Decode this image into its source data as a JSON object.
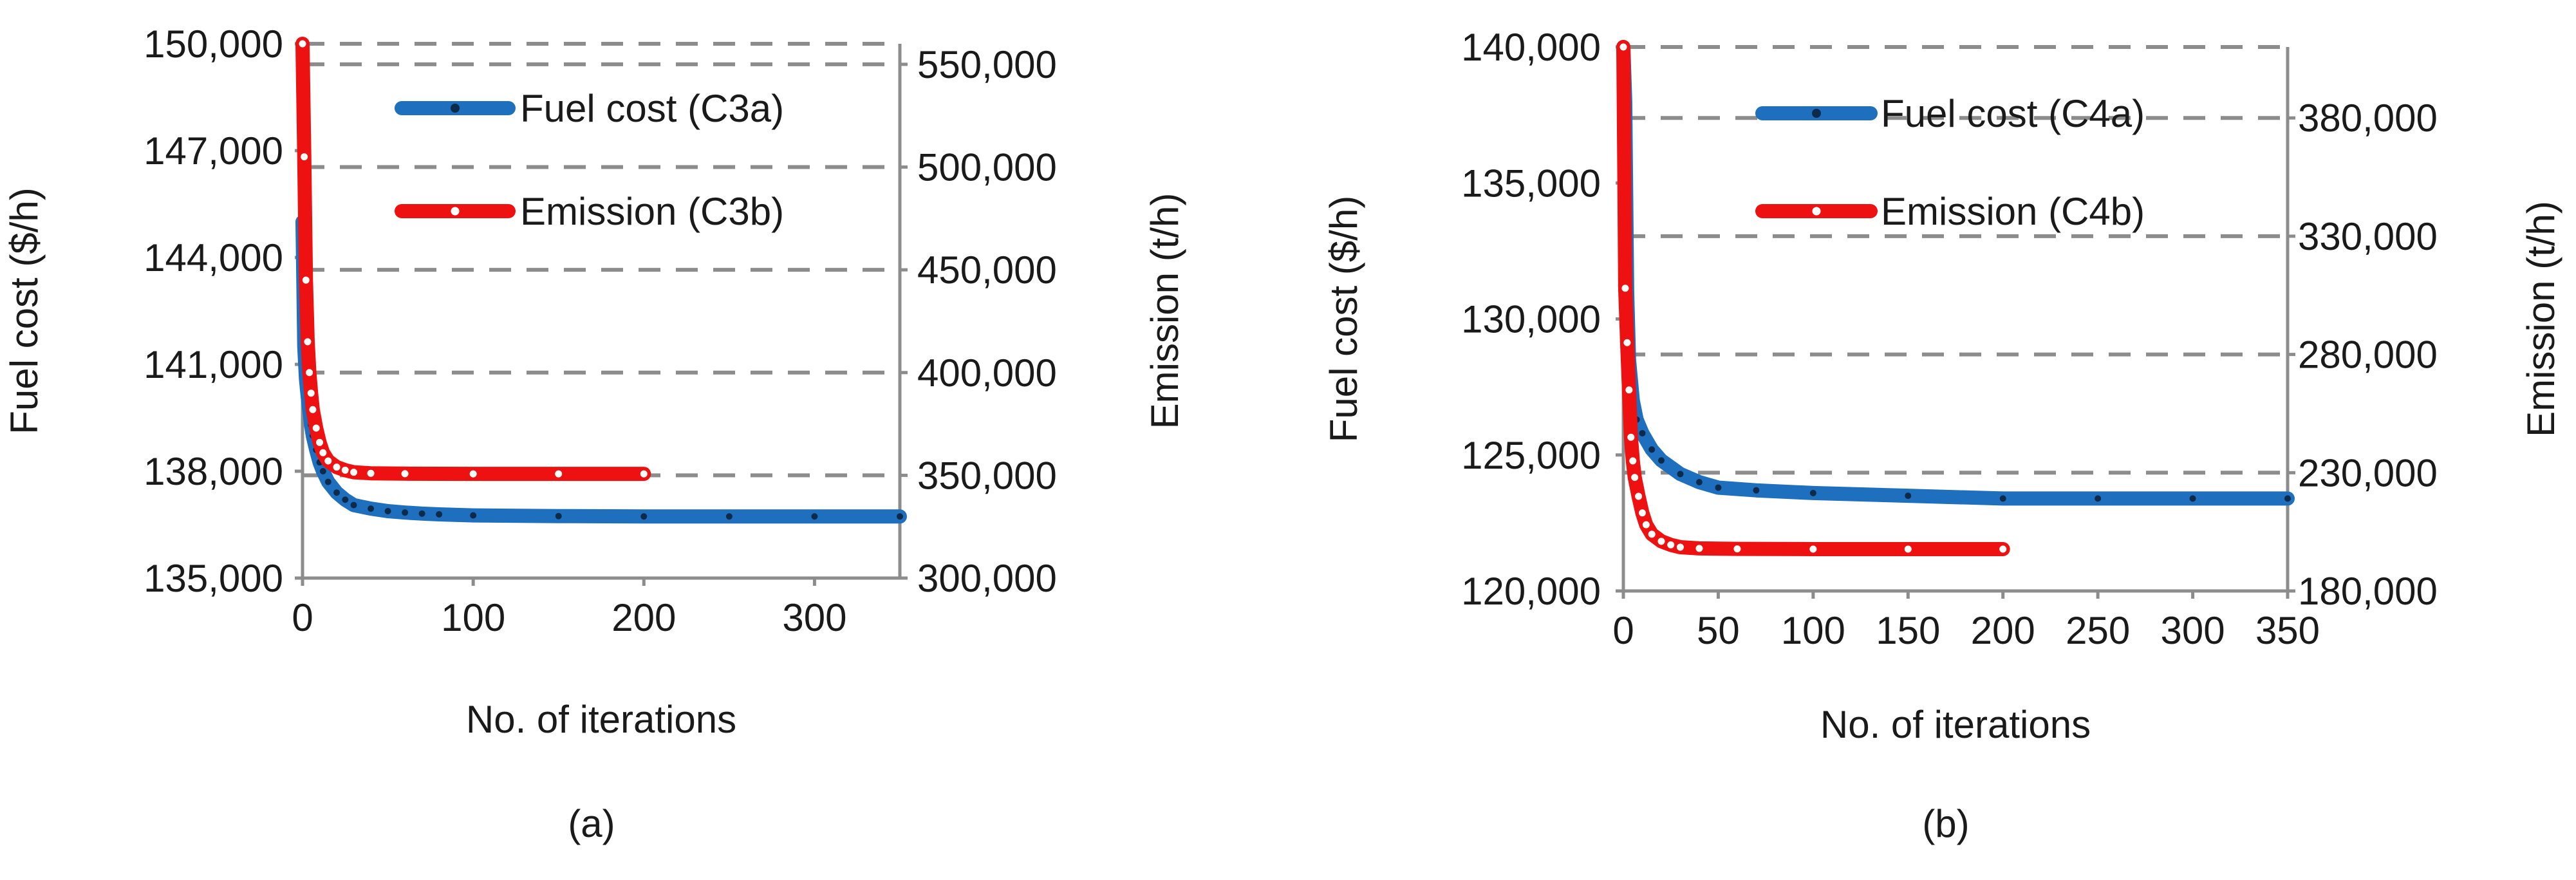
{
  "colors": {
    "fuel": "#1f6fbf",
    "emission": "#ee1111",
    "grid": "#8c8c8c"
  },
  "chart_data": [
    {
      "type": "line",
      "panel_label": "(a)",
      "xlabel": "No. of iterations",
      "ylabel_left": "Fuel cost ($/h)",
      "ylabel_right": "Emission (t/h)",
      "xlim": [
        0,
        350
      ],
      "ylim_left": [
        135000,
        150000
      ],
      "ylim_right": [
        300000,
        560000
      ],
      "x_ticks": [
        0,
        100,
        200,
        300
      ],
      "x_tick_labels": [
        "0",
        "100",
        "200",
        "300"
      ],
      "y_left_ticks": [
        135000,
        138000,
        141000,
        144000,
        147000,
        150000
      ],
      "y_left_tick_labels": [
        "135,000",
        "138,000",
        "141,000",
        "144,000",
        "147,000",
        "150,000"
      ],
      "y_right_ticks": [
        300000,
        350000,
        400000,
        450000,
        500000,
        550000
      ],
      "y_right_tick_labels": [
        "300,000",
        "350,000",
        "400,000",
        "450,000",
        "500,000",
        "550,000"
      ],
      "legend_position": "top-right",
      "series": [
        {
          "name": "Fuel cost (C3a)",
          "axis": "left",
          "color": "#1f6fbf",
          "marker": "dot",
          "points": [
            [
              0,
              145000
            ],
            [
              1,
              141500
            ],
            [
              2,
              140600
            ],
            [
              3,
              140100
            ],
            [
              4,
              139700
            ],
            [
              5,
              139300
            ],
            [
              6,
              139000
            ],
            [
              8,
              138600
            ],
            [
              10,
              138250
            ],
            [
              12,
              138000
            ],
            [
              15,
              137700
            ],
            [
              20,
              137400
            ],
            [
              25,
              137200
            ],
            [
              30,
              137050
            ],
            [
              40,
              136950
            ],
            [
              50,
              136880
            ],
            [
              60,
              136840
            ],
            [
              70,
              136810
            ],
            [
              80,
              136790
            ],
            [
              100,
              136760
            ],
            [
              150,
              136740
            ],
            [
              200,
              136730
            ],
            [
              250,
              136730
            ],
            [
              300,
              136730
            ],
            [
              350,
              136730
            ]
          ]
        },
        {
          "name": "Emission (C3b)",
          "axis": "right",
          "color": "#ee1111",
          "marker": "ring",
          "points": [
            [
              0,
              560000
            ],
            [
              1,
              505000
            ],
            [
              2,
              445000
            ],
            [
              3,
              415000
            ],
            [
              4,
              400000
            ],
            [
              5,
              390000
            ],
            [
              6,
              382000
            ],
            [
              8,
              373000
            ],
            [
              10,
              366000
            ],
            [
              12,
              361000
            ],
            [
              15,
              357000
            ],
            [
              20,
              354000
            ],
            [
              25,
              352500
            ],
            [
              30,
              351500
            ],
            [
              40,
              351000
            ],
            [
              60,
              350800
            ],
            [
              100,
              350700
            ],
            [
              150,
              350700
            ],
            [
              200,
              350700
            ]
          ]
        }
      ]
    },
    {
      "type": "line",
      "panel_label": "(b)",
      "xlabel": "No. of iterations",
      "ylabel_left": "Fuel cost ($/h)",
      "ylabel_right": "Emission (t/h)",
      "xlim": [
        0,
        350
      ],
      "ylim_left": [
        120000,
        140000
      ],
      "ylim_right": [
        180000,
        410000
      ],
      "x_ticks": [
        0,
        50,
        100,
        150,
        200,
        250,
        300,
        350
      ],
      "x_tick_labels": [
        "0",
        "50",
        "100",
        "150",
        "200",
        "250",
        "300",
        "350"
      ],
      "y_left_ticks": [
        120000,
        125000,
        130000,
        135000,
        140000
      ],
      "y_left_tick_labels": [
        "120,000",
        "125,000",
        "130,000",
        "135,000",
        "140,000"
      ],
      "y_right_ticks": [
        180000,
        230000,
        280000,
        330000,
        380000
      ],
      "y_right_tick_labels": [
        "180,000",
        "230,000",
        "280,000",
        "330,000",
        "380,000"
      ],
      "legend_position": "top-right",
      "series": [
        {
          "name": "Fuel cost (C4a)",
          "axis": "left",
          "color": "#1f6fbf",
          "marker": "dot",
          "points": [
            [
              0,
              140000
            ],
            [
              1,
              138000
            ],
            [
              2,
              131000
            ],
            [
              3,
              128500
            ],
            [
              5,
              127000
            ],
            [
              7,
              126300
            ],
            [
              10,
              125800
            ],
            [
              15,
              125200
            ],
            [
              20,
              124800
            ],
            [
              30,
              124300
            ],
            [
              40,
              124000
            ],
            [
              50,
              123800
            ],
            [
              70,
              123700
            ],
            [
              100,
              123600
            ],
            [
              150,
              123500
            ],
            [
              200,
              123400
            ],
            [
              250,
              123400
            ],
            [
              300,
              123400
            ],
            [
              350,
              123400
            ]
          ]
        },
        {
          "name": "Emission (C4b)",
          "axis": "right",
          "color": "#ee1111",
          "marker": "ring",
          "points": [
            [
              0,
              410000
            ],
            [
              1,
              308000
            ],
            [
              2,
              285000
            ],
            [
              3,
              265000
            ],
            [
              4,
              245000
            ],
            [
              5,
              235000
            ],
            [
              6,
              228000
            ],
            [
              8,
              220000
            ],
            [
              10,
              213000
            ],
            [
              12,
              208000
            ],
            [
              15,
              204000
            ],
            [
              20,
              201000
            ],
            [
              25,
              199500
            ],
            [
              30,
              198500
            ],
            [
              40,
              198000
            ],
            [
              60,
              197800
            ],
            [
              100,
              197700
            ],
            [
              150,
              197700
            ],
            [
              200,
              197700
            ]
          ]
        }
      ]
    }
  ]
}
